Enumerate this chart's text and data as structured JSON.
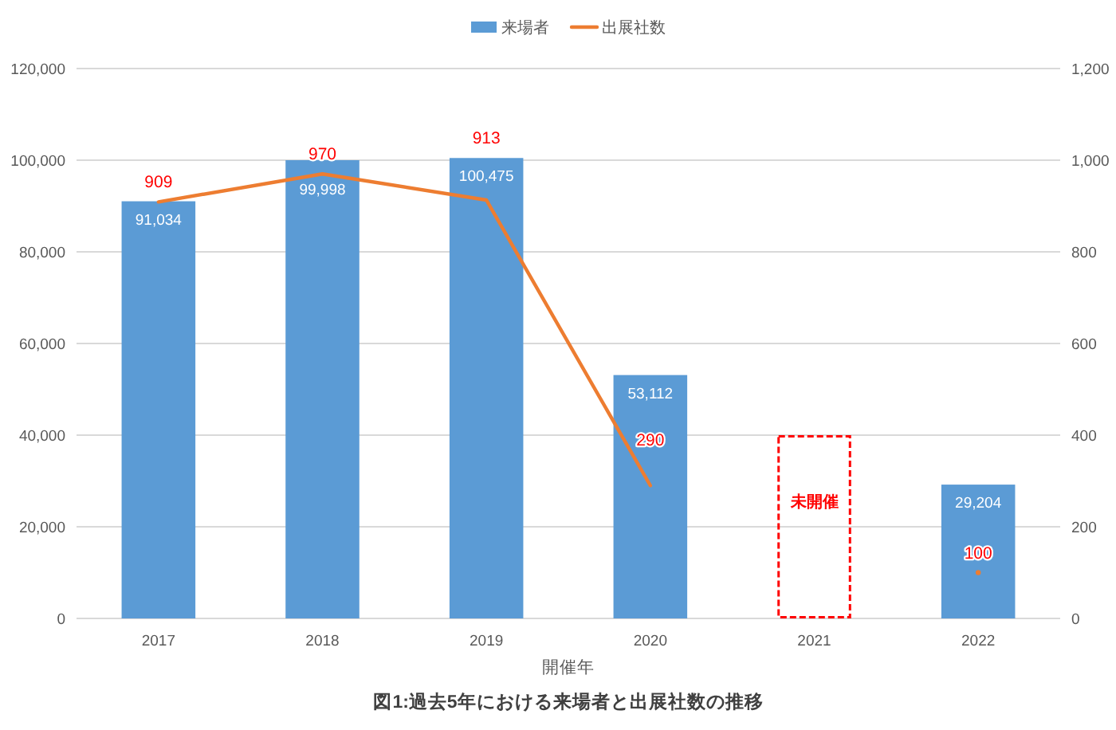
{
  "chart_data": {
    "type": "bar",
    "title": "図1:過去5年における来場者と出展社数の推移",
    "xlabel": "開催年",
    "categories": [
      "2017",
      "2018",
      "2019",
      "2020",
      "2021",
      "2022"
    ],
    "series": [
      {
        "name": "来場者",
        "color": "#5b9bd5",
        "values": [
          91034,
          99998,
          100475,
          53112,
          null,
          29204
        ],
        "value_labels": [
          "91,034",
          "99,998",
          "100,475",
          "53,112",
          null,
          "29,204"
        ]
      },
      {
        "color": "#ff0000",
        "line_style": "dashed",
        "values": [
          null,
          null,
          null,
          null,
          40000,
          null
        ]
      },
      {
        "name": "出展社数",
        "type": "line",
        "axis": "y2",
        "color": "#ed7d31",
        "values": [
          909,
          970,
          913,
          290,
          null,
          100
        ],
        "value_labels": [
          "909",
          "970",
          "913",
          "290",
          null,
          "100"
        ]
      }
    ],
    "stacked": true,
    "ylim": [
      0,
      120000
    ],
    "yticks": [
      0,
      {
        "value": 20000,
        "label": "20,000"
      },
      {
        "value": 40000,
        "label": "40,000"
      },
      {
        "value": 60000,
        "label": "60,000"
      },
      {
        "value": 80000,
        "label": "80,000"
      },
      {
        "value": 100000,
        "label": "100,000"
      },
      {
        "value": 120000,
        "label": "120,000"
      }
    ],
    "y2lim": [
      0,
      1200
    ],
    "y2ticks": [
      0,
      200,
      400,
      600,
      800,
      {
        "value": 1000,
        "label": "1,000"
      },
      {
        "value": 1200,
        "label": "1,200"
      }
    ],
    "grid": "y",
    "legend": "top",
    "annotations": [
      "未開催"
    ]
  }
}
